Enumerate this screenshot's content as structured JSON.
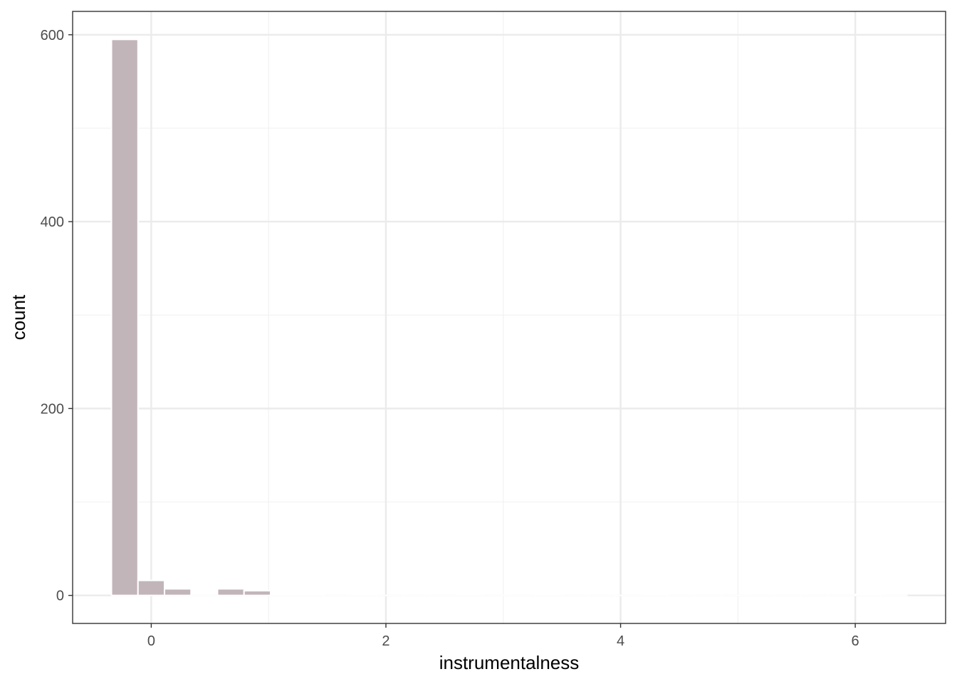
{
  "chart_data": {
    "type": "bar",
    "title": "",
    "xlabel": "instrumentalness",
    "ylabel": "count",
    "xlim": [
      -0.67,
      6.77
    ],
    "ylim": [
      -30,
      625
    ],
    "x_ticks": [
      0,
      2,
      4,
      6
    ],
    "x_minor_ticks": [
      1,
      3,
      5
    ],
    "y_ticks": [
      0,
      200,
      400,
      600
    ],
    "y_minor_ticks": [
      100,
      300,
      500
    ],
    "grid": true,
    "bin_width": 0.226,
    "bins": {
      "x": [
        -0.226,
        0.0,
        0.226,
        0.452,
        0.678,
        0.904,
        1.13,
        1.356,
        1.582,
        1.808,
        2.034,
        2.26,
        2.486,
        2.712,
        2.938,
        3.164,
        3.39,
        3.616,
        3.842,
        4.068,
        4.294,
        4.52,
        4.746,
        4.972,
        5.198,
        5.424,
        5.65,
        5.876,
        6.102,
        6.328
      ],
      "values": [
        595,
        16,
        7,
        0,
        7,
        5,
        1,
        1,
        0,
        1,
        0,
        0,
        0,
        1,
        0,
        0,
        1,
        0,
        0,
        0,
        1,
        0,
        0,
        0,
        0,
        0,
        0,
        0,
        1,
        0
      ]
    },
    "colors": {
      "bar_fill": "#c2b5b9",
      "bar_stroke": "#ffffff",
      "grid_major": "#ebebeb",
      "grid_minor": "#f2f2f2",
      "panel_border": "#333333"
    }
  }
}
